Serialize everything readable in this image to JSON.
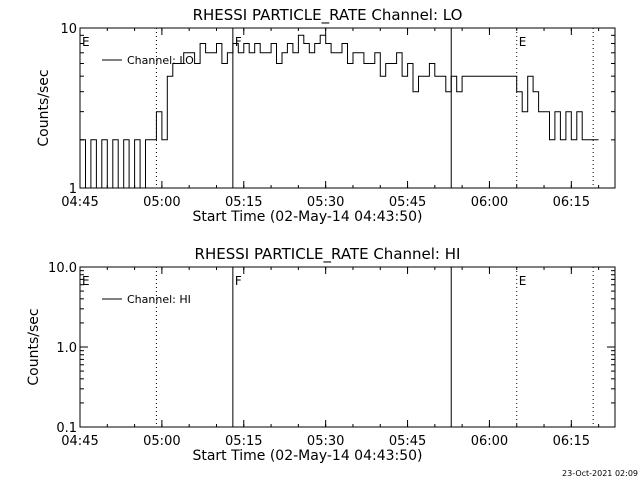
{
  "footer": {
    "timestamp": "23-Oct-2021 02:09"
  },
  "chart_data": [
    {
      "type": "line",
      "title": "RHESSI PARTICLE_RATE Channel: LO",
      "xlabel": "Start Time (02-May-14 04:43:50)",
      "ylabel": "Counts/sec",
      "xlim": [
        "04:45",
        "06:23"
      ],
      "x_ticks": [
        "04:45",
        "05:00",
        "05:15",
        "05:30",
        "05:45",
        "06:00",
        "06:15"
      ],
      "ylim": [
        1,
        10
      ],
      "yscale": "log",
      "y_ticks": [
        "1",
        "10"
      ],
      "legend": {
        "entries": [
          "Channel: LO"
        ],
        "placement": "top-left"
      },
      "markers": [
        {
          "time": "04:45",
          "label": "E",
          "style": "none"
        },
        {
          "time": "04:59",
          "label": "",
          "style": "dotted"
        },
        {
          "time": "05:13",
          "label": "F",
          "style": "solid"
        },
        {
          "time": "05:53",
          "label": "",
          "style": "solid"
        },
        {
          "time": "06:05",
          "label": "E",
          "style": "dotted"
        },
        {
          "time": "06:19",
          "label": "",
          "style": "dotted"
        }
      ],
      "series": [
        {
          "name": "Channel: LO",
          "x": [
            "04:45",
            "04:46",
            "04:47",
            "04:48",
            "04:49",
            "04:50",
            "04:51",
            "04:52",
            "04:53",
            "04:54",
            "04:55",
            "04:56",
            "04:57",
            "04:58",
            "04:59",
            "05:00",
            "05:01",
            "05:02",
            "05:03",
            "05:04",
            "05:05",
            "05:06",
            "05:07",
            "05:08",
            "05:09",
            "05:10",
            "05:11",
            "05:12",
            "05:13",
            "05:14",
            "05:15",
            "05:16",
            "05:17",
            "05:18",
            "05:19",
            "05:20",
            "05:21",
            "05:22",
            "05:23",
            "05:24",
            "05:25",
            "05:26",
            "05:27",
            "05:28",
            "05:29",
            "05:30",
            "05:31",
            "05:32",
            "05:33",
            "05:34",
            "05:35",
            "05:36",
            "05:37",
            "05:38",
            "05:39",
            "05:40",
            "05:41",
            "05:42",
            "05:43",
            "05:44",
            "05:45",
            "05:46",
            "05:47",
            "05:48",
            "05:49",
            "05:50",
            "05:51",
            "05:52",
            "05:53",
            "05:54",
            "05:55",
            "05:56",
            "05:57",
            "05:58",
            "05:59",
            "06:00",
            "06:01",
            "06:02",
            "06:03",
            "06:04",
            "06:05",
            "06:06",
            "06:07",
            "06:08",
            "06:09",
            "06:10",
            "06:11",
            "06:12",
            "06:13",
            "06:14",
            "06:15",
            "06:16",
            "06:17",
            "06:18",
            "06:19"
          ],
          "values": [
            2,
            1,
            2,
            1,
            2,
            1,
            2,
            1,
            2,
            1,
            2,
            1,
            2,
            2,
            3,
            2,
            5,
            6,
            6,
            7,
            7,
            6,
            8,
            7,
            7,
            8,
            6,
            7,
            8,
            7,
            8,
            7,
            8,
            7,
            7,
            8,
            6,
            7,
            8,
            7,
            9,
            8,
            7,
            8,
            9,
            8,
            7,
            7,
            8,
            6,
            7,
            7,
            6,
            6,
            7,
            5,
            6,
            6,
            7,
            5,
            6,
            4,
            5,
            5,
            6,
            5,
            5,
            4,
            5,
            4,
            5,
            5,
            5,
            5,
            5,
            5,
            5,
            5,
            5,
            5,
            4,
            3,
            5,
            4,
            3,
            3,
            2,
            3,
            2,
            3,
            2,
            3,
            2,
            2,
            2
          ]
        }
      ]
    },
    {
      "type": "line",
      "title": "RHESSI PARTICLE_RATE Channel: HI",
      "xlabel": "Start Time (02-May-14 04:43:50)",
      "ylabel": "Counts/sec",
      "xlim": [
        "04:45",
        "06:23"
      ],
      "x_ticks": [
        "04:45",
        "05:00",
        "05:15",
        "05:30",
        "05:45",
        "06:00",
        "06:15"
      ],
      "ylim": [
        0.1,
        10
      ],
      "yscale": "log",
      "y_ticks": [
        "0.1",
        "1.0",
        "10.0"
      ],
      "legend": {
        "entries": [
          "Channel: HI"
        ],
        "placement": "top-left"
      },
      "markers": [
        {
          "time": "04:45",
          "label": "E",
          "style": "none"
        },
        {
          "time": "04:59",
          "label": "",
          "style": "dotted"
        },
        {
          "time": "05:13",
          "label": "F",
          "style": "solid"
        },
        {
          "time": "05:53",
          "label": "",
          "style": "solid"
        },
        {
          "time": "06:05",
          "label": "E",
          "style": "dotted"
        },
        {
          "time": "06:19",
          "label": "",
          "style": "dotted"
        }
      ],
      "series": [
        {
          "name": "Channel: HI",
          "x": [],
          "values": []
        }
      ]
    }
  ]
}
